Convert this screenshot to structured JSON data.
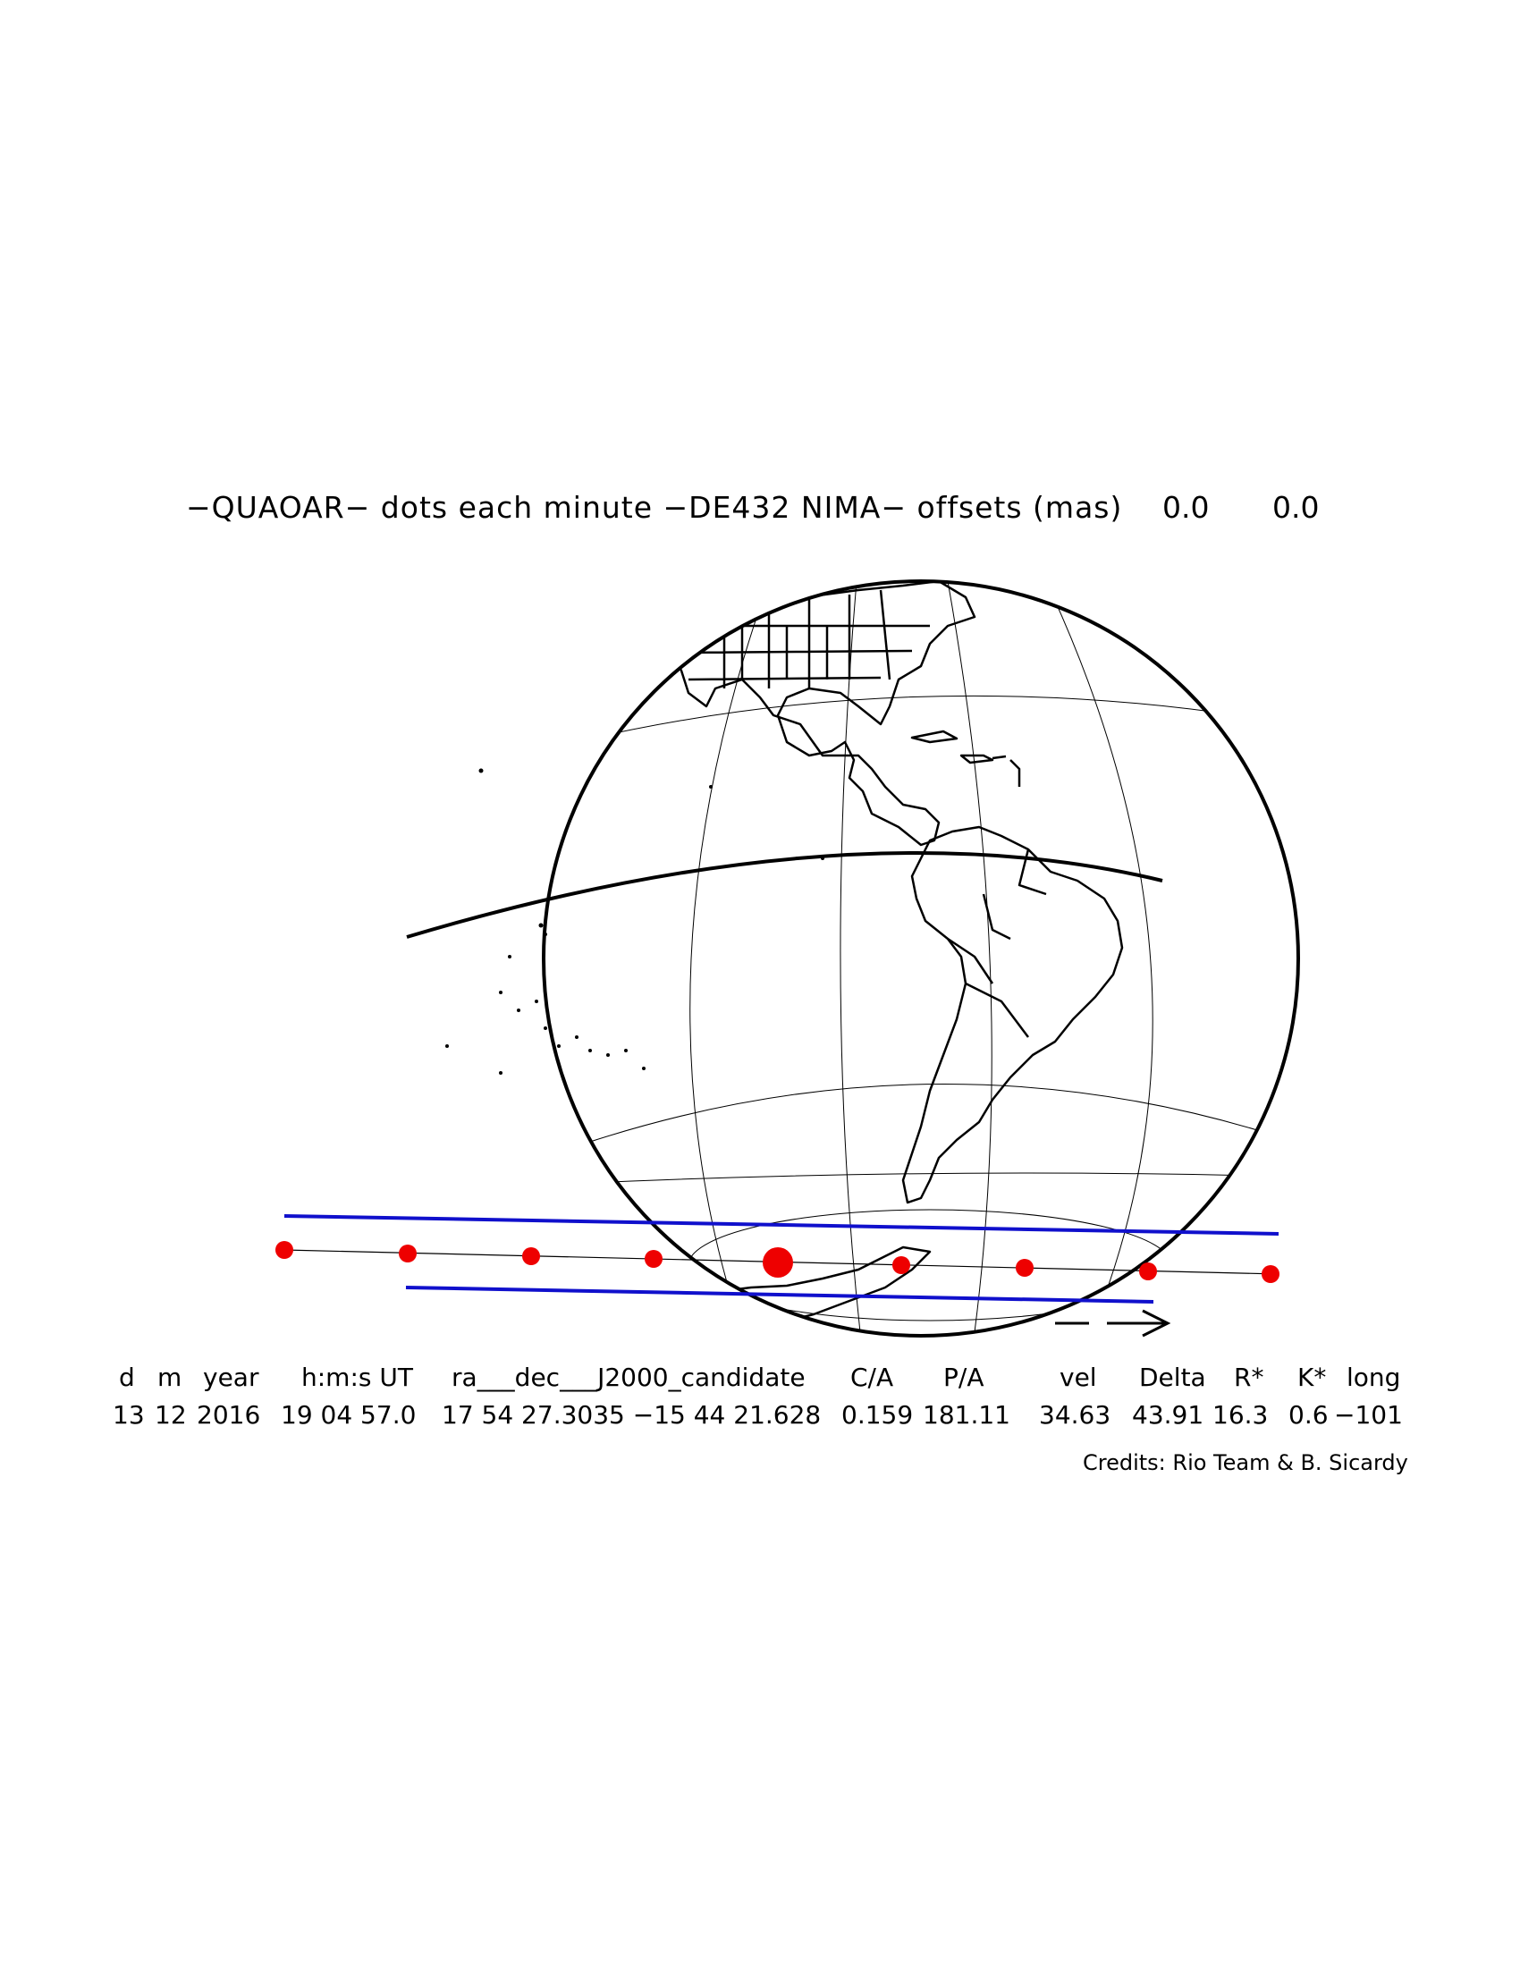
{
  "title": {
    "text": "−QUAOAR− dots each minute −DE432 NIMA− offsets (mas)",
    "offset_ra": "0.0",
    "offset_dec": "0.0"
  },
  "colors": {
    "path_limits": "#1010cc",
    "dots": "#ee0000",
    "coast": "#000000"
  },
  "event": {
    "headers": [
      "d",
      "m",
      "year",
      "h:m:s UT",
      "ra___dec___J2000_candidate",
      "C/A",
      "P/A",
      "vel",
      "Delta",
      "R*",
      "K*",
      "long"
    ],
    "values": [
      "13",
      "12",
      "2016",
      "19 04 57.0",
      "17 54 27.3035 −15 44 21.628",
      "0.159",
      "181.11",
      "34.63",
      "43.91",
      "16.3",
      "0.6",
      "−101"
    ]
  },
  "credits": "Credits: Rio Team & B. Sicardy"
}
